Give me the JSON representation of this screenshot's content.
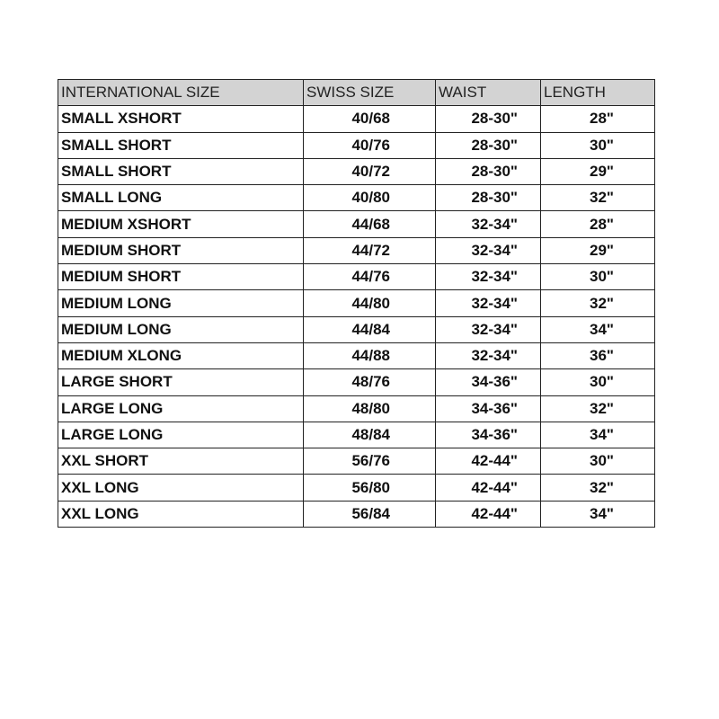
{
  "table": {
    "headers": [
      "INTERNATIONAL SIZE",
      "SWISS SIZE",
      "WAIST",
      "LENGTH"
    ],
    "header_bg": "#d3d3d3",
    "rows": [
      [
        "SMALL XSHORT",
        "40/68",
        "28-30\"",
        "28\""
      ],
      [
        "SMALL SHORT",
        "40/76",
        "28-30\"",
        "30\""
      ],
      [
        "SMALL SHORT",
        "40/72",
        "28-30\"",
        "29\""
      ],
      [
        "SMALL LONG",
        "40/80",
        "28-30\"",
        "32\""
      ],
      [
        "MEDIUM XSHORT",
        "44/68",
        "32-34\"",
        "28\""
      ],
      [
        "MEDIUM SHORT",
        "44/72",
        "32-34\"",
        "29\""
      ],
      [
        "MEDIUM SHORT",
        "44/76",
        "32-34\"",
        "30\""
      ],
      [
        "MEDIUM LONG",
        "44/80",
        "32-34\"",
        "32\""
      ],
      [
        "MEDIUM LONG",
        "44/84",
        "32-34\"",
        "34\""
      ],
      [
        "MEDIUM XLONG",
        "44/88",
        "32-34\"",
        "36\""
      ],
      [
        "LARGE SHORT",
        "48/76",
        "34-36\"",
        "30\""
      ],
      [
        "LARGE LONG",
        "48/80",
        "34-36\"",
        "32\""
      ],
      [
        "LARGE LONG",
        "48/84",
        "34-36\"",
        "34\""
      ],
      [
        "XXL SHORT",
        "56/76",
        "42-44\"",
        "30\""
      ],
      [
        "XXL LONG",
        "56/80",
        "42-44\"",
        "32\""
      ],
      [
        "XXL LONG",
        "56/84",
        "42-44\"",
        "34\""
      ]
    ]
  }
}
